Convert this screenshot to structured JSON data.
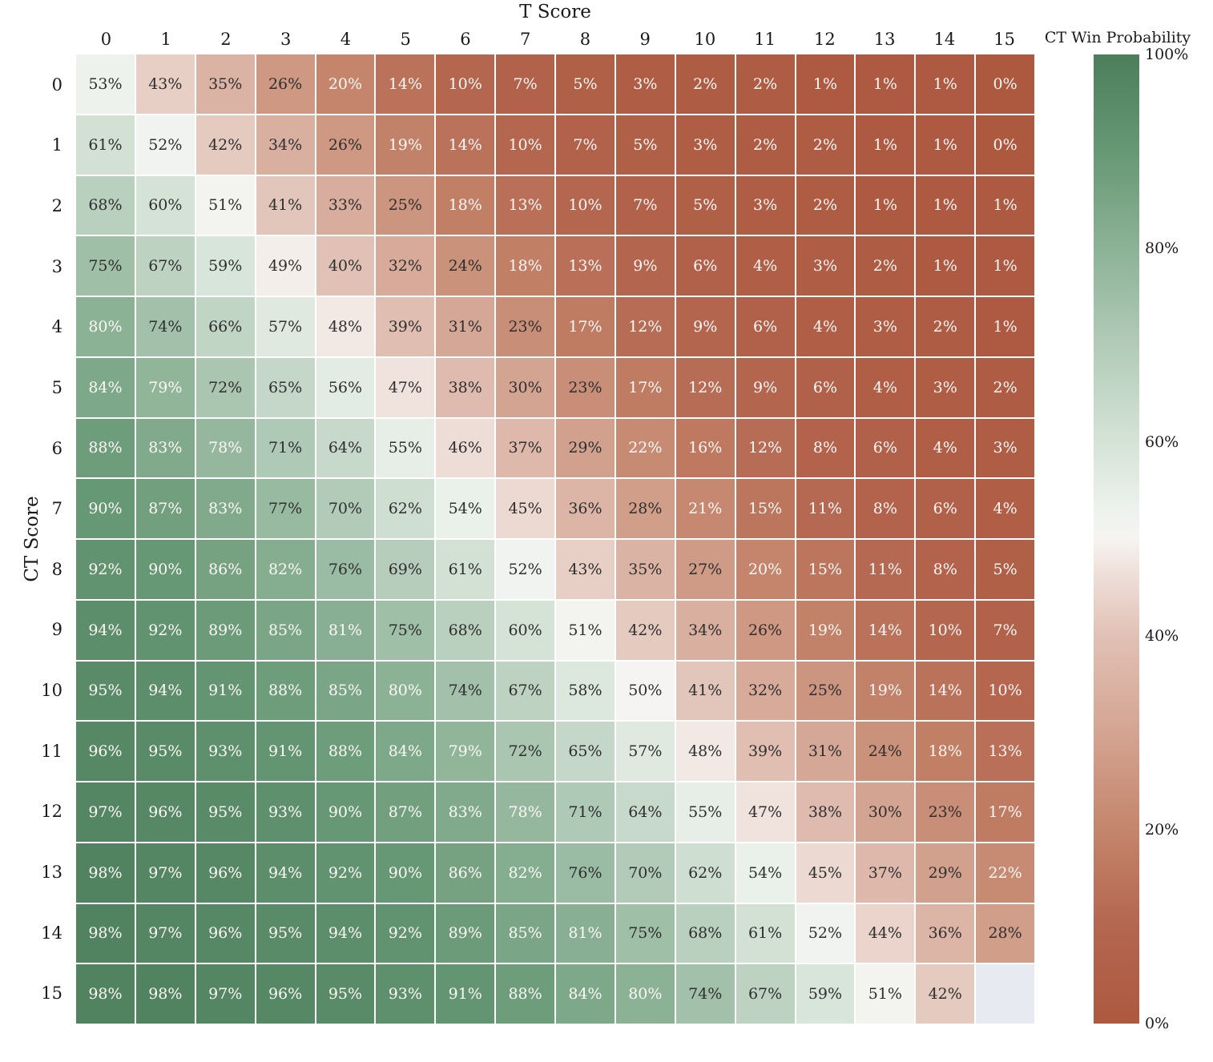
{
  "chart_data": {
    "type": "heatmap",
    "x_axis_label": "T Score",
    "y_axis_label": "CT Score",
    "x_ticks": [
      "0",
      "1",
      "2",
      "3",
      "4",
      "5",
      "6",
      "7",
      "8",
      "9",
      "10",
      "11",
      "12",
      "13",
      "14",
      "15"
    ],
    "y_ticks": [
      "0",
      "1",
      "2",
      "3",
      "4",
      "5",
      "6",
      "7",
      "8",
      "9",
      "10",
      "11",
      "12",
      "13",
      "14",
      "15"
    ],
    "value_unit": "%",
    "values": [
      [
        53,
        43,
        35,
        26,
        20,
        14,
        10,
        7,
        5,
        3,
        2,
        2,
        1,
        1,
        1,
        0
      ],
      [
        61,
        52,
        42,
        34,
        26,
        19,
        14,
        10,
        7,
        5,
        3,
        2,
        2,
        1,
        1,
        0
      ],
      [
        68,
        60,
        51,
        41,
        33,
        25,
        18,
        13,
        10,
        7,
        5,
        3,
        2,
        1,
        1,
        1
      ],
      [
        75,
        67,
        59,
        49,
        40,
        32,
        24,
        18,
        13,
        9,
        6,
        4,
        3,
        2,
        1,
        1
      ],
      [
        80,
        74,
        66,
        57,
        48,
        39,
        31,
        23,
        17,
        12,
        9,
        6,
        4,
        3,
        2,
        1
      ],
      [
        84,
        79,
        72,
        65,
        56,
        47,
        38,
        30,
        23,
        17,
        12,
        9,
        6,
        4,
        3,
        2
      ],
      [
        88,
        83,
        78,
        71,
        64,
        55,
        46,
        37,
        29,
        22,
        16,
        12,
        8,
        6,
        4,
        3
      ],
      [
        90,
        87,
        83,
        77,
        70,
        62,
        54,
        45,
        36,
        28,
        21,
        15,
        11,
        8,
        6,
        4
      ],
      [
        92,
        90,
        86,
        82,
        76,
        69,
        61,
        52,
        43,
        35,
        27,
        20,
        15,
        11,
        8,
        5
      ],
      [
        94,
        92,
        89,
        85,
        81,
        75,
        68,
        60,
        51,
        42,
        34,
        26,
        19,
        14,
        10,
        7
      ],
      [
        95,
        94,
        91,
        88,
        85,
        80,
        74,
        67,
        58,
        50,
        41,
        32,
        25,
        19,
        14,
        10
      ],
      [
        96,
        95,
        93,
        91,
        88,
        84,
        79,
        72,
        65,
        57,
        48,
        39,
        31,
        24,
        18,
        13
      ],
      [
        97,
        96,
        95,
        93,
        90,
        87,
        83,
        78,
        71,
        64,
        55,
        47,
        38,
        30,
        23,
        17
      ],
      [
        98,
        97,
        96,
        94,
        92,
        90,
        86,
        82,
        76,
        70,
        62,
        54,
        45,
        37,
        29,
        22
      ],
      [
        98,
        97,
        96,
        95,
        94,
        92,
        89,
        85,
        81,
        75,
        68,
        61,
        52,
        44,
        36,
        28
      ],
      [
        98,
        98,
        97,
        96,
        95,
        93,
        91,
        88,
        84,
        80,
        74,
        67,
        59,
        51,
        42,
        null
      ]
    ],
    "colorbar": {
      "title": "CT Win Probability",
      "ticks": [
        {
          "label": "100%",
          "value": 100
        },
        {
          "label": "80%",
          "value": 80
        },
        {
          "label": "60%",
          "value": 60
        },
        {
          "label": "40%",
          "value": 40
        },
        {
          "label": "20%",
          "value": 20
        },
        {
          "label": "0%",
          "value": 0
        }
      ]
    },
    "colormap_stops": [
      {
        "value": 0,
        "color": "#ad5940"
      },
      {
        "value": 10,
        "color": "#b4664f"
      },
      {
        "value": 20,
        "color": "#c4856c"
      },
      {
        "value": 30,
        "color": "#d4a492"
      },
      {
        "value": 40,
        "color": "#e1c1b5"
      },
      {
        "value": 47,
        "color": "#f0e2dd"
      },
      {
        "value": 50,
        "color": "#f6f4f2"
      },
      {
        "value": 53,
        "color": "#edf2ed"
      },
      {
        "value": 60,
        "color": "#d5e3d7"
      },
      {
        "value": 70,
        "color": "#b2cbb8"
      },
      {
        "value": 80,
        "color": "#8cb296"
      },
      {
        "value": 90,
        "color": "#679875"
      },
      {
        "value": 100,
        "color": "#4d7e5c"
      }
    ],
    "colors": {
      "annotation_dark": "#2e2e2e",
      "annotation_light": "#fcf8f6",
      "masked_cell": "#e8eaf2",
      "grid_line": "#ffffff"
    }
  }
}
